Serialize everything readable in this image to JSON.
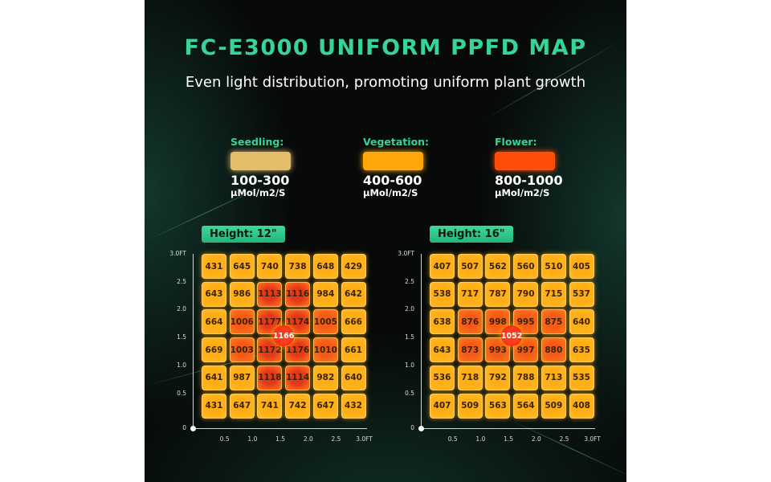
{
  "title": "FC-E3000 UNIFORM PPFD MAP",
  "subtitle": "Even light distribution, promoting uniform plant growth",
  "legend": [
    {
      "label": "Seedling:",
      "range": "100-300",
      "unit": "μMol/m2/S",
      "color": "#e3bd6a"
    },
    {
      "label": "Vegetation:",
      "range": "400-600",
      "unit": "μMol/m2/S",
      "color": "#ffa70a"
    },
    {
      "label": "Flower:",
      "range": "800-1000",
      "unit": "μMol/m2/S",
      "color": "#ff4d0a"
    }
  ],
  "colors": {
    "cool": "#ffad14",
    "warm": "#f45a16",
    "hot": "#e4381a",
    "accent": "#35d59a"
  },
  "axis": {
    "y_ticks": [
      "3.0FT",
      "2.5",
      "2.0",
      "1.5",
      "1.0",
      "0.5",
      "0"
    ],
    "x_ticks": [
      "0.5",
      "1.0",
      "1.5",
      "2.0",
      "2.5",
      "3.0FT"
    ]
  },
  "maps": [
    {
      "height_label": "Height: 12\"",
      "center": "1166",
      "rows": [
        [
          431,
          645,
          740,
          738,
          648,
          429
        ],
        [
          643,
          986,
          1113,
          1116,
          984,
          642
        ],
        [
          664,
          1006,
          1177,
          1174,
          1005,
          666
        ],
        [
          669,
          1003,
          1172,
          1176,
          1010,
          661
        ],
        [
          641,
          987,
          1118,
          1114,
          982,
          640
        ],
        [
          431,
          647,
          741,
          742,
          647,
          432
        ]
      ]
    },
    {
      "height_label": "Height: 16\"",
      "center": "1052",
      "rows": [
        [
          407,
          507,
          562,
          560,
          510,
          405
        ],
        [
          538,
          717,
          787,
          790,
          715,
          537
        ],
        [
          638,
          876,
          998,
          995,
          875,
          640
        ],
        [
          643,
          873,
          993,
          997,
          880,
          635
        ],
        [
          536,
          718,
          792,
          788,
          713,
          535
        ],
        [
          407,
          509,
          563,
          564,
          509,
          408
        ]
      ]
    }
  ]
}
